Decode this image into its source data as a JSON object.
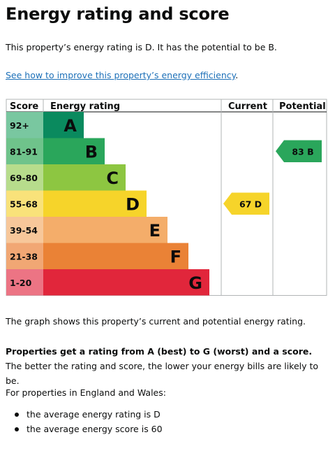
{
  "heading": "Energy rating and score",
  "intro": "This property’s energy rating is D. It has the potential to be B.",
  "improve_link": "See how to improve this property’s energy efficiency",
  "improve_link_suffix": ".",
  "chart": {
    "headers": {
      "score": "Score",
      "rating": "Energy rating",
      "current": "Current",
      "potential": "Potential"
    },
    "bands": [
      {
        "score": "92+",
        "letter": "A",
        "color": "#0a8a5e",
        "score_bg": "#79c7a0"
      },
      {
        "score": "81-91",
        "letter": "B",
        "color": "#2aa65b",
        "score_bg": "#6fc38b"
      },
      {
        "score": "69-80",
        "letter": "C",
        "color": "#8dc641",
        "score_bg": "#b7dc8c"
      },
      {
        "score": "55-68",
        "letter": "D",
        "color": "#f6d42a",
        "score_bg": "#f9e27a"
      },
      {
        "score": "39-54",
        "letter": "E",
        "color": "#f4ad6a",
        "score_bg": "#f7c79a"
      },
      {
        "score": "21-38",
        "letter": "F",
        "color": "#ea8236",
        "score_bg": "#f1a774"
      },
      {
        "score": "1-20",
        "letter": "G",
        "color": "#e1263b",
        "score_bg": "#ec7484"
      }
    ],
    "current": {
      "score": 67,
      "letter": "D",
      "label": "67  D",
      "color": "#f6d42a"
    },
    "potential": {
      "score": 83,
      "letter": "B",
      "label": "83  B",
      "color": "#2aa65b"
    }
  },
  "graph_note": "The graph shows this property’s current and potential energy rating.",
  "rating_bold": "Properties get a rating from A (best) to G (worst) and a score.",
  "rating_rest": " The better the rating and score, the lower your energy bills are likely to be.",
  "region_intro": "For properties in England and Wales:",
  "averages": [
    "the average energy rating is D",
    "the average energy score is 60"
  ]
}
